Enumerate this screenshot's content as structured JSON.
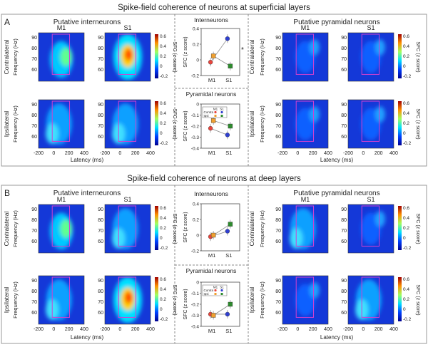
{
  "panel_a": {
    "letter": "A",
    "title": "Spike-field coherence of neurons at superficial layers",
    "interneuron_header": "Putative interneurons",
    "pyramidal_header": "Putative pyramidal neurons",
    "interneuron_inset_title": "Interneurons",
    "pyramidal_inset_title": "Pyramidal neurons",
    "significance_mark": "*"
  },
  "panel_b": {
    "letter": "B",
    "title": "Spike-field coherence of neurons at deep layers",
    "interneuron_header": "Putative interneurons",
    "pyramidal_header": "Putative pyramidal neurons",
    "interneuron_inset_title": "Interneurons",
    "pyramidal_inset_title": "Pyramidal neurons"
  },
  "common": {
    "m1": "M1",
    "s1": "S1",
    "contralateral": "Contralateral",
    "ipsilateral": "Ipsilateral",
    "freq_label": "Frequency (Hz)",
    "latency_label": "Latency (ms)",
    "sfc_label": "SFC (z score)",
    "freq_ticks": [
      "90",
      "80",
      "70",
      "60"
    ],
    "latency_ticks": [
      "-200",
      "0",
      "200",
      "400"
    ],
    "colorbar_ticks": [
      "0.6",
      "0.4",
      "0.2",
      "0",
      "-0.2"
    ],
    "legend_contra": "Contra",
    "legend_ipsi": "Ipsi",
    "legend_m1": "M1",
    "legend_s1": "S1"
  },
  "colors": {
    "contra_m1": "#e8453c",
    "contra_s1": "#2f3fcf",
    "ipsi_m1": "#f0a030",
    "ipsi_s1": "#2e8b2e",
    "roi_box": "#d040d0"
  },
  "chart_data": [
    {
      "type": "line",
      "panel": "A",
      "title": "Interneurons",
      "categories": [
        "M1",
        "S1"
      ],
      "ylabel": "SFC (z score)",
      "ylim": [
        -0.2,
        0.4
      ],
      "yticks": [
        -0.2,
        0,
        0.2,
        0.4
      ],
      "series": [
        {
          "key": "contra_m1",
          "values": [
            -0.03,
            null
          ]
        },
        {
          "key": "contra_s1",
          "values": [
            null,
            0.27
          ]
        },
        {
          "key": "ipsi_m1",
          "values": [
            0.05,
            null
          ]
        },
        {
          "key": "ipsi_s1",
          "values": [
            null,
            -0.08
          ]
        }
      ],
      "lines": [
        {
          "from": "contra_m1",
          "to": "contra_s1"
        },
        {
          "from": "ipsi_m1",
          "to": "ipsi_s1"
        }
      ]
    },
    {
      "type": "line",
      "panel": "A",
      "title": "Pyramidal neurons",
      "categories": [
        "M1",
        "S1"
      ],
      "ylabel": "SFC (z score)",
      "ylim": [
        -0.4,
        0
      ],
      "yticks": [
        -0.4,
        -0.3,
        -0.2,
        -0.1,
        0
      ],
      "legend": "top-left",
      "series": [
        {
          "key": "contra_m1",
          "values": [
            -0.22,
            null
          ]
        },
        {
          "key": "contra_s1",
          "values": [
            null,
            -0.28
          ]
        },
        {
          "key": "ipsi_m1",
          "values": [
            -0.15,
            null
          ]
        },
        {
          "key": "ipsi_s1",
          "values": [
            null,
            -0.2
          ]
        }
      ],
      "lines": [
        {
          "from": "contra_m1",
          "to": "contra_s1"
        },
        {
          "from": "ipsi_m1",
          "to": "ipsi_s1"
        }
      ]
    },
    {
      "type": "line",
      "panel": "B",
      "title": "Interneurons",
      "categories": [
        "M1",
        "S1"
      ],
      "ylabel": "SFC (z score)",
      "ylim": [
        -0.2,
        0.4
      ],
      "yticks": [
        -0.2,
        0,
        0.2,
        0.4
      ],
      "series": [
        {
          "key": "contra_m1",
          "values": [
            -0.02,
            null
          ]
        },
        {
          "key": "contra_s1",
          "values": [
            null,
            0.05
          ]
        },
        {
          "key": "ipsi_m1",
          "values": [
            0.0,
            null
          ]
        },
        {
          "key": "ipsi_s1",
          "values": [
            null,
            0.14
          ]
        }
      ],
      "lines": [
        {
          "from": "contra_m1",
          "to": "contra_s1"
        },
        {
          "from": "ipsi_m1",
          "to": "ipsi_s1"
        }
      ]
    },
    {
      "type": "line",
      "panel": "B",
      "title": "Pyramidal neurons",
      "categories": [
        "M1",
        "S1"
      ],
      "ylabel": "SFC (z score)",
      "ylim": [
        -0.4,
        0
      ],
      "yticks": [
        -0.4,
        -0.3,
        -0.2,
        -0.1,
        0
      ],
      "legend": "top-left",
      "series": [
        {
          "key": "contra_m1",
          "values": [
            -0.29,
            null
          ]
        },
        {
          "key": "contra_s1",
          "values": [
            null,
            -0.29
          ]
        },
        {
          "key": "ipsi_m1",
          "values": [
            -0.3,
            null
          ]
        },
        {
          "key": "ipsi_s1",
          "values": [
            null,
            -0.2
          ]
        }
      ],
      "lines": [
        {
          "from": "contra_m1",
          "to": "contra_s1"
        },
        {
          "from": "ipsi_m1",
          "to": "ipsi_s1"
        }
      ]
    }
  ]
}
